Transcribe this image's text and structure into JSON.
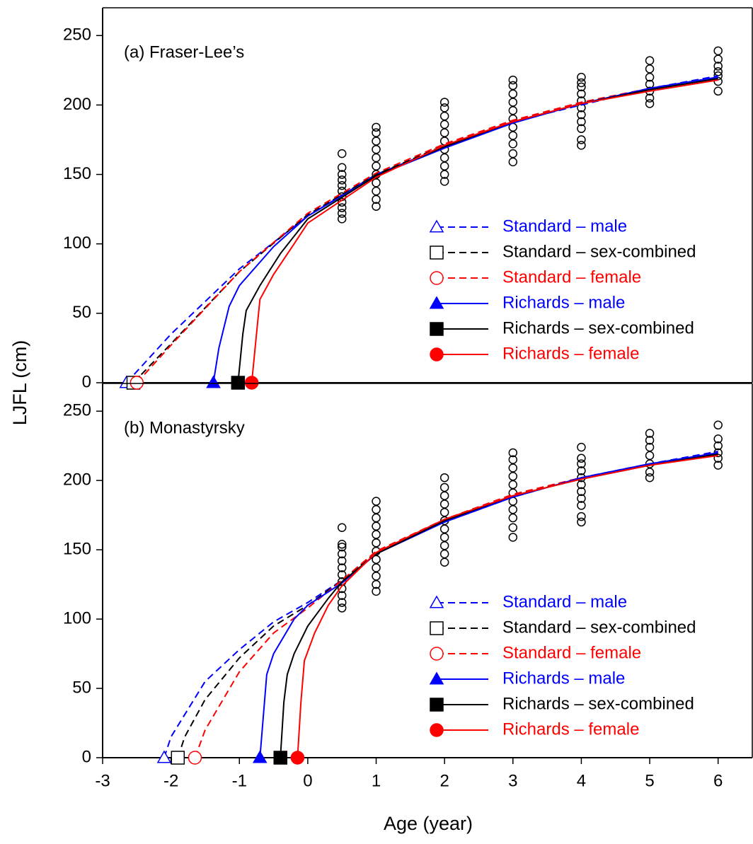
{
  "x_label": "Age (year)",
  "y_label": "LJFL (cm)",
  "chart_data": [
    {
      "type": "line",
      "title": "(a) Fraser-Lee’s",
      "xlim": [
        -3,
        6.5
      ],
      "ylim": [
        0,
        270
      ],
      "yticks": [
        0,
        50,
        100,
        150,
        200,
        250
      ],
      "legend": "lower right",
      "series": [
        {
          "name": "Standard – male",
          "color": "#0000ff",
          "style": "dashed",
          "marker": "triangle-open",
          "x": [
            -2.65,
            -2,
            -1,
            0,
            0.5,
            1,
            2,
            3,
            4,
            5,
            6
          ],
          "values": [
            0,
            35,
            82,
            120,
            135,
            150,
            170,
            188,
            200,
            212,
            221
          ]
        },
        {
          "name": "Standard – sex-combined",
          "color": "#000000",
          "style": "dashed",
          "marker": "square-open",
          "x": [
            -2.55,
            -2,
            -1,
            0,
            1,
            2,
            3,
            4,
            5,
            6
          ],
          "values": [
            0,
            28,
            80,
            121,
            150,
            171,
            188,
            201,
            212,
            220
          ]
        },
        {
          "name": "Standard – female",
          "color": "#ff0000",
          "style": "dashed",
          "marker": "circle-open",
          "x": [
            -2.5,
            -2,
            -1,
            0,
            1,
            2,
            3,
            4,
            5,
            6
          ],
          "values": [
            0,
            27,
            80,
            122,
            151,
            172,
            189,
            202,
            212,
            219
          ]
        },
        {
          "name": "Richards – male",
          "color": "#0000ff",
          "style": "solid",
          "marker": "triangle",
          "x": [
            -1.38,
            -1.3,
            -1.15,
            -1,
            -0.5,
            0,
            1,
            2,
            3,
            4,
            5,
            6
          ],
          "values": [
            0,
            25,
            55,
            70,
            98,
            120,
            149,
            169,
            187,
            201,
            212,
            220
          ]
        },
        {
          "name": "Richards – sex-combined",
          "color": "#000000",
          "style": "solid",
          "marker": "square",
          "x": [
            -1.02,
            -0.95,
            -0.9,
            -0.7,
            -0.4,
            0,
            1,
            2,
            3,
            4,
            5,
            6
          ],
          "values": [
            0,
            35,
            52,
            70,
            93,
            118,
            149,
            170,
            188,
            201,
            211,
            219
          ]
        },
        {
          "name": "Richards – female",
          "color": "#ff0000",
          "style": "solid",
          "marker": "circle",
          "x": [
            -0.82,
            -0.75,
            -0.7,
            -0.5,
            -0.2,
            0,
            1,
            2,
            3,
            4,
            5,
            6
          ],
          "values": [
            0,
            35,
            60,
            78,
            100,
            115,
            148,
            171,
            188,
            201,
            210,
            218
          ]
        }
      ],
      "points": {
        "color": "#000000",
        "x": [
          0.5,
          0.5,
          0.5,
          0.5,
          0.5,
          0.5,
          0.5,
          0.5,
          0.5,
          0.5,
          0.5,
          1,
          1,
          1,
          1,
          1,
          1,
          1,
          1,
          1,
          1,
          1,
          2,
          2,
          2,
          2,
          2,
          2,
          2,
          2,
          2,
          2,
          2,
          3,
          3,
          3,
          3,
          3,
          3,
          3,
          3,
          3,
          3,
          3,
          4,
          4,
          4,
          4,
          4,
          4,
          4,
          4,
          4,
          4,
          4,
          5,
          5,
          5,
          5,
          5,
          5,
          5,
          6,
          6,
          6,
          6,
          6,
          6,
          6
        ],
        "values": [
          118,
          122,
          126,
          130,
          134,
          138,
          142,
          146,
          150,
          155,
          165,
          127,
          132,
          138,
          144,
          150,
          156,
          162,
          168,
          174,
          180,
          184,
          145,
          150,
          156,
          162,
          168,
          174,
          180,
          186,
          192,
          198,
          202,
          159,
          165,
          172,
          178,
          184,
          190,
          196,
          202,
          208,
          214,
          218,
          171,
          175,
          183,
          188,
          193,
          198,
          203,
          208,
          213,
          216,
          220,
          201,
          205,
          210,
          215,
          220,
          226,
          232,
          210,
          217,
          221,
          224,
          228,
          233,
          239
        ]
      }
    },
    {
      "type": "line",
      "title": "(b) Monastyrsky",
      "xlim": [
        -3,
        6.5
      ],
      "ylim": [
        0,
        270
      ],
      "xticks": [
        -3,
        -2,
        -1,
        0,
        1,
        2,
        3,
        4,
        5,
        6
      ],
      "yticks": [
        0,
        50,
        100,
        150,
        200,
        250
      ],
      "legend": "lower right",
      "series": [
        {
          "name": "Standard – male",
          "color": "#0000ff",
          "style": "dashed",
          "marker": "triangle-open",
          "x": [
            -2.1,
            -2,
            -1.5,
            -1,
            -0.5,
            0,
            0.5,
            1,
            2,
            3,
            4,
            5,
            6
          ],
          "values": [
            0,
            15,
            55,
            78,
            98,
            112,
            128,
            148,
            170,
            188,
            202,
            212,
            221
          ]
        },
        {
          "name": "Standard – sex-combined",
          "color": "#000000",
          "style": "dashed",
          "marker": "square-open",
          "x": [
            -1.9,
            -1.8,
            -1.5,
            -1,
            -0.5,
            0,
            0.5,
            1,
            2,
            3,
            4,
            5,
            6
          ],
          "values": [
            0,
            15,
            42,
            72,
            95,
            110,
            128,
            148,
            171,
            189,
            202,
            212,
            220
          ]
        },
        {
          "name": "Standard – female",
          "color": "#ff0000",
          "style": "dashed",
          "marker": "circle-open",
          "x": [
            -1.65,
            -1.5,
            -1,
            -0.5,
            0,
            0.5,
            1,
            2,
            3,
            4,
            5,
            6
          ],
          "values": [
            0,
            20,
            62,
            90,
            108,
            128,
            149,
            172,
            190,
            202,
            211,
            219
          ]
        },
        {
          "name": "Richards – male",
          "color": "#0000ff",
          "style": "solid",
          "marker": "triangle",
          "x": [
            -0.7,
            -0.65,
            -0.6,
            -0.5,
            -0.2,
            0,
            0.5,
            1,
            2,
            3,
            4,
            5,
            6
          ],
          "values": [
            0,
            30,
            60,
            75,
            100,
            110,
            126,
            147,
            170,
            188,
            202,
            212,
            220
          ]
        },
        {
          "name": "Richards – sex-combined",
          "color": "#000000",
          "style": "solid",
          "marker": "square",
          "x": [
            -0.4,
            -0.35,
            -0.3,
            -0.2,
            0,
            0.3,
            0.5,
            1,
            2,
            3,
            4,
            5,
            6
          ],
          "values": [
            0,
            40,
            60,
            75,
            95,
            115,
            127,
            147,
            171,
            189,
            201,
            211,
            219
          ]
        },
        {
          "name": "Richards – female",
          "color": "#ff0000",
          "style": "solid",
          "marker": "circle",
          "x": [
            -0.15,
            -0.1,
            -0.05,
            0.1,
            0.3,
            0.5,
            1,
            2,
            3,
            4,
            5,
            6
          ],
          "values": [
            0,
            40,
            70,
            90,
            110,
            124,
            148,
            172,
            189,
            201,
            211,
            218
          ]
        }
      ],
      "points": {
        "color": "#000000",
        "x": [
          0.5,
          0.5,
          0.5,
          0.5,
          0.5,
          0.5,
          0.5,
          0.5,
          0.5,
          0.5,
          0.5,
          0.5,
          1,
          1,
          1,
          1,
          1,
          1,
          1,
          1,
          1,
          1,
          1,
          1,
          2,
          2,
          2,
          2,
          2,
          2,
          2,
          2,
          2,
          2,
          2,
          3,
          3,
          3,
          3,
          3,
          3,
          3,
          3,
          3,
          3,
          3,
          4,
          4,
          4,
          4,
          4,
          4,
          4,
          4,
          4,
          4,
          4,
          5,
          5,
          5,
          5,
          5,
          5,
          5,
          6,
          6,
          6,
          6,
          6,
          6
        ],
        "values": [
          108,
          112,
          117,
          122,
          127,
          132,
          137,
          142,
          147,
          152,
          154,
          166,
          120,
          125,
          131,
          137,
          143,
          149,
          155,
          161,
          167,
          173,
          179,
          185,
          141,
          147,
          153,
          159,
          165,
          171,
          177,
          183,
          189,
          195,
          202,
          159,
          166,
          173,
          179,
          185,
          191,
          197,
          203,
          209,
          215,
          220,
          170,
          174,
          182,
          187,
          192,
          197,
          202,
          207,
          212,
          216,
          224,
          202,
          206,
          212,
          218,
          224,
          229,
          234,
          211,
          216,
          220,
          225,
          230,
          240
        ]
      }
    }
  ]
}
